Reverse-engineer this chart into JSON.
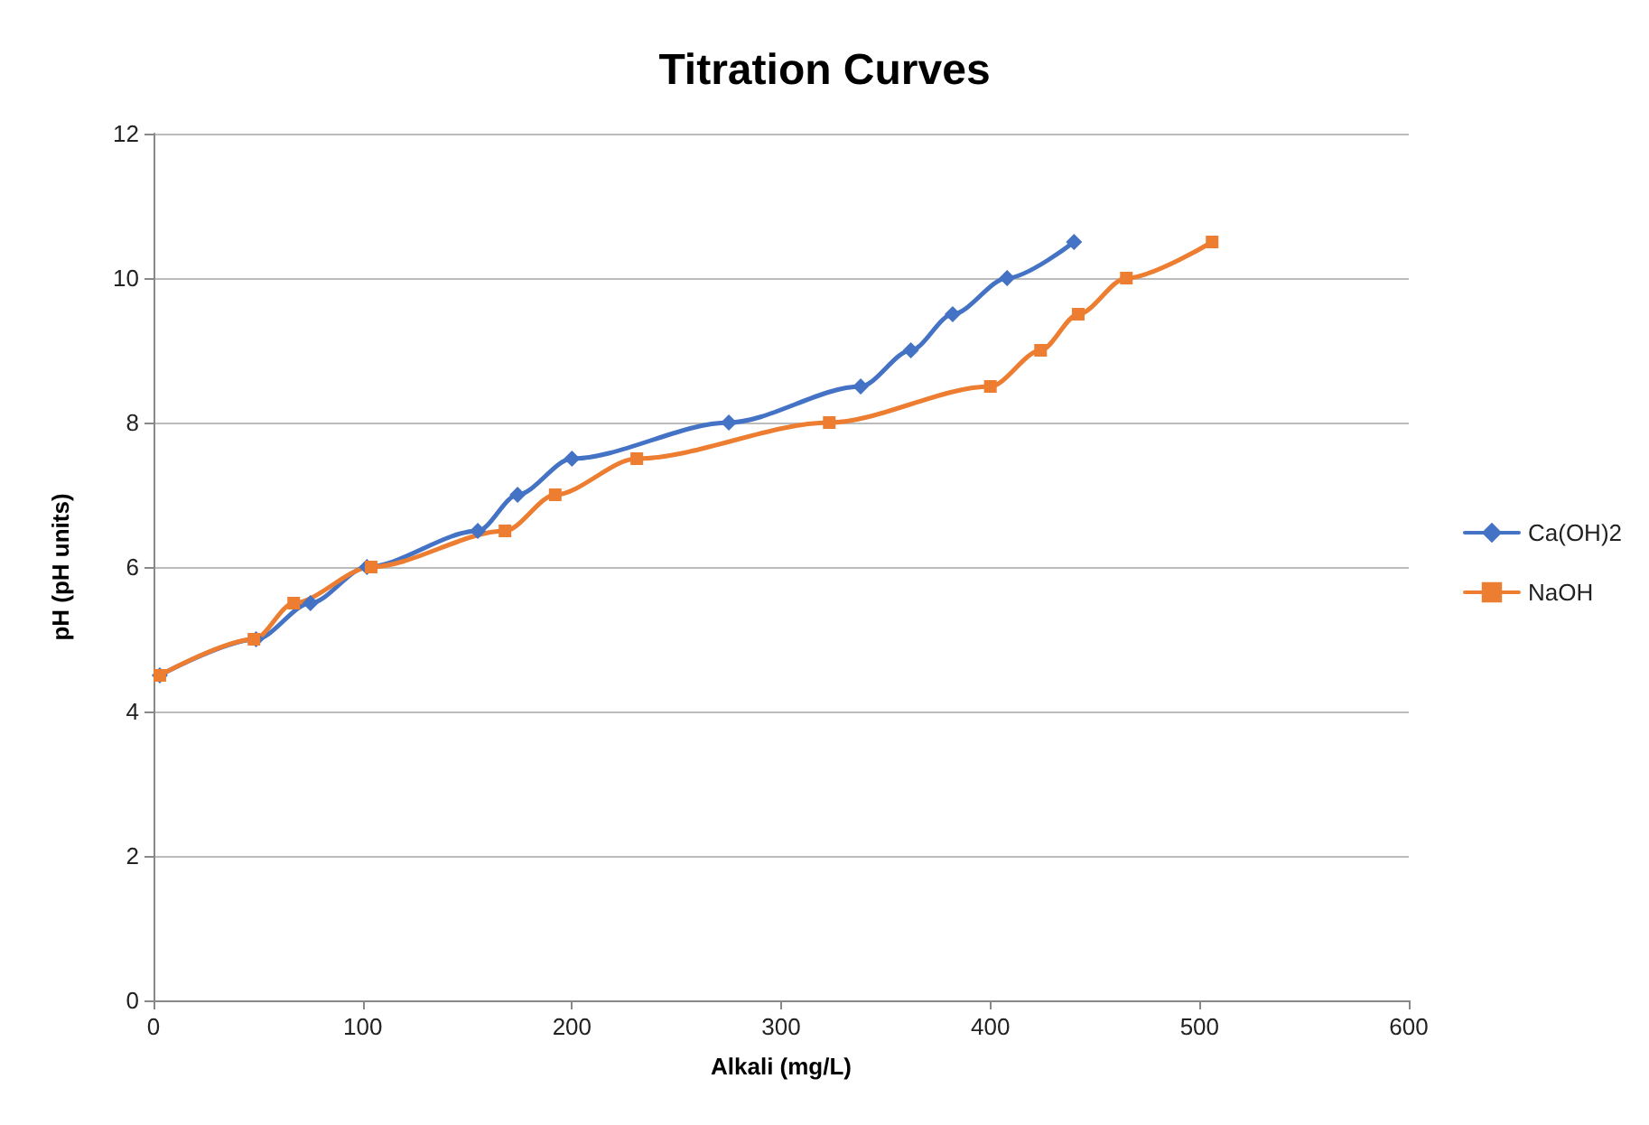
{
  "chart_data": {
    "type": "line",
    "title": "Titration Curves",
    "xlabel": "Alkali (mg/L)",
    "ylabel": "pH (pH units)",
    "xlim": [
      0,
      600
    ],
    "xticks": [
      0,
      100,
      200,
      300,
      400,
      500,
      600
    ],
    "ylim": [
      0,
      12
    ],
    "yticks": [
      0,
      2,
      4,
      6,
      8,
      10,
      12
    ],
    "grid": "y",
    "legend": "right",
    "series": [
      {
        "name": "Ca(OH)2",
        "color": "#4472c4",
        "marker": "diamond",
        "x": [
          3,
          49,
          75,
          102,
          155,
          174,
          200,
          275,
          338,
          362,
          382,
          408,
          440
        ],
        "values": [
          4.5,
          5,
          5.5,
          6,
          6.5,
          7,
          7.5,
          8,
          8.5,
          9,
          9.5,
          10,
          10.5
        ]
      },
      {
        "name": "NaOH",
        "color": "#ed7d31",
        "marker": "square",
        "x": [
          3,
          48,
          67,
          104,
          168,
          192,
          231,
          323,
          400,
          424,
          442,
          465,
          506
        ],
        "values": [
          4.5,
          5,
          5.5,
          6,
          6.5,
          7,
          7.5,
          8,
          8.5,
          9,
          9.5,
          10,
          10.5
        ]
      }
    ]
  }
}
